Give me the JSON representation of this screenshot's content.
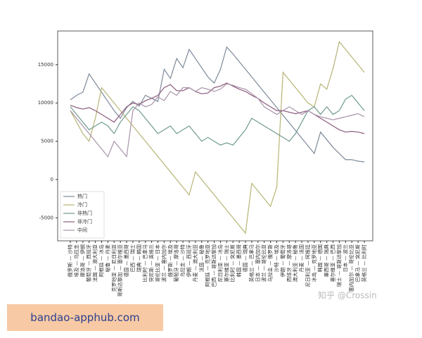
{
  "chart_data": {
    "type": "line",
    "categories": [
      "俄罗斯 — 沙特",
      "埃及 — 乌拉圭",
      "摩洛哥 — 伊朗",
      "葡萄牙 — 西班牙",
      "法国 — 澳大利亚",
      "阿根廷 — 冰岛",
      "秘鲁 — 丹麦",
      "克罗地亚 — 尼日利亚",
      "哥斯达黎加 — 塞尔维亚",
      "德国 — 墨西哥",
      "巴西 — 瑞士",
      "瑞典 — 韩国",
      "比利时 — 巴拿马",
      "突尼斯 — 英格兰",
      "哥伦比亚 — 日本",
      "波兰 — 塞内加尔",
      "俄罗斯 — 埃及",
      "葡萄牙 — 摩洛哥",
      "乌拉圭 — 沙特",
      "伊朗 — 西班牙",
      "丹麦 — 澳大利亚",
      "法国 — 秘鲁",
      "阿根廷 — 克罗地亚",
      "巴西 — 哥斯达黎加",
      "尼日利亚 — 冰岛",
      "塞尔维亚 — 瑞士",
      "比利时 — 突尼斯",
      "韩国 — 墨西哥",
      "德国 — 瑞典",
      "英格兰 — 巴拿马",
      "日本 — 塞内加尔",
      "波兰 — 哥伦比亚",
      "乌拉圭 — 俄罗斯",
      "沙特 — 埃及",
      "伊朗 — 葡萄牙",
      "西班牙 — 摩洛哥",
      "澳大利亚 — 秘鲁",
      "丹麦 — 法国",
      "尼日利亚 — 阿根廷",
      "冰岛 — 克罗地亚",
      "韩国 — 德国",
      "墨西哥 — 瑞典",
      "塞尔维亚 — 巴西",
      "瑞士 — 哥斯达黎加",
      "日本 — 波兰",
      "塞内加尔 — 哥伦比亚",
      "巴拿马 — 突尼斯",
      "英格兰 — 比利时"
    ],
    "series": [
      {
        "name": "热门",
        "color": "#7d8a99",
        "values": [
          10400,
          11000,
          11400,
          13800,
          12600,
          11400,
          10200,
          9000,
          8000,
          9400,
          10200,
          9600,
          11000,
          10600,
          10200,
          14400,
          13200,
          15800,
          14600,
          17000,
          15800,
          14600,
          13400,
          12600,
          14400,
          17300,
          16400,
          15400,
          14400,
          13400,
          12400,
          11400,
          10400,
          9400,
          8400,
          7400,
          6400,
          5400,
          4400,
          3400,
          6200,
          5200,
          4200,
          3400,
          2600,
          2600,
          2400,
          2300
        ]
      },
      {
        "name": "冷门",
        "color": "#b8b475",
        "values": [
          9000,
          7500,
          6000,
          5000,
          8000,
          12000,
          11000,
          10000,
          9000,
          8000,
          7000,
          6000,
          5000,
          4000,
          3000,
          2000,
          1000,
          0,
          -1000,
          -2000,
          1000,
          0,
          -1000,
          -2000,
          -3000,
          -4000,
          -5000,
          -6000,
          -7000,
          -500,
          -1500,
          -2500,
          -3500,
          -1000,
          14000,
          13000,
          12000,
          11000,
          10000,
          9500,
          12500,
          11800,
          14500,
          18000,
          17000,
          16000,
          15000,
          14000
        ]
      },
      {
        "name": "非热门",
        "color": "#6f9a8e",
        "values": [
          9500,
          8500,
          7500,
          6500,
          7000,
          7500,
          7000,
          6000,
          7500,
          8500,
          9500,
          9000,
          8000,
          7000,
          6000,
          6500,
          7000,
          6000,
          6500,
          7000,
          6000,
          5000,
          5500,
          5000,
          4500,
          4800,
          4500,
          5500,
          6500,
          8000,
          7500,
          7000,
          6500,
          6000,
          5500,
          5000,
          6000,
          7500,
          9000,
          9500,
          8500,
          9500,
          8500,
          9000,
          10500,
          11000,
          10000,
          9000
        ]
      },
      {
        "name": "非冷门",
        "color": "#8c5a7c",
        "values": [
          9700,
          9400,
          9200,
          9400,
          9000,
          8500,
          8000,
          7500,
          8500,
          9500,
          10000,
          9800,
          10300,
          10600,
          11000,
          12000,
          12400,
          11600,
          11600,
          12000,
          11500,
          11200,
          11300,
          12000,
          12200,
          12600,
          12200,
          11800,
          11500,
          11000,
          10600,
          10000,
          9500,
          9000,
          9000,
          8800,
          8600,
          8800,
          9000,
          8500,
          8000,
          7500,
          7000,
          6500,
          6200,
          6300,
          6200,
          6000
        ]
      },
      {
        "name": "中间",
        "color": "#a892a8",
        "values": [
          9000,
          8000,
          7000,
          6000,
          5000,
          4000,
          3000,
          5000,
          4000,
          3000,
          9000,
          10000,
          9500,
          9800,
          10800,
          10300,
          11500,
          11000,
          12000,
          12000,
          11500,
          12000,
          11800,
          11500,
          11800,
          12500,
          12300,
          12000,
          11800,
          11200,
          10600,
          9500,
          9000,
          8500,
          9000,
          9500,
          9000,
          8500,
          9000,
          8500,
          8200,
          8000,
          7800,
          8000,
          8200,
          8400,
          8600,
          8200
        ]
      }
    ],
    "ylim": [
      -8000,
      19400
    ],
    "yticks": [
      -5000,
      0,
      5000,
      10000,
      15000
    ],
    "legend": "lower left"
  },
  "watermark": "知乎 @Crossin",
  "footer": "bandao-apphub.com"
}
